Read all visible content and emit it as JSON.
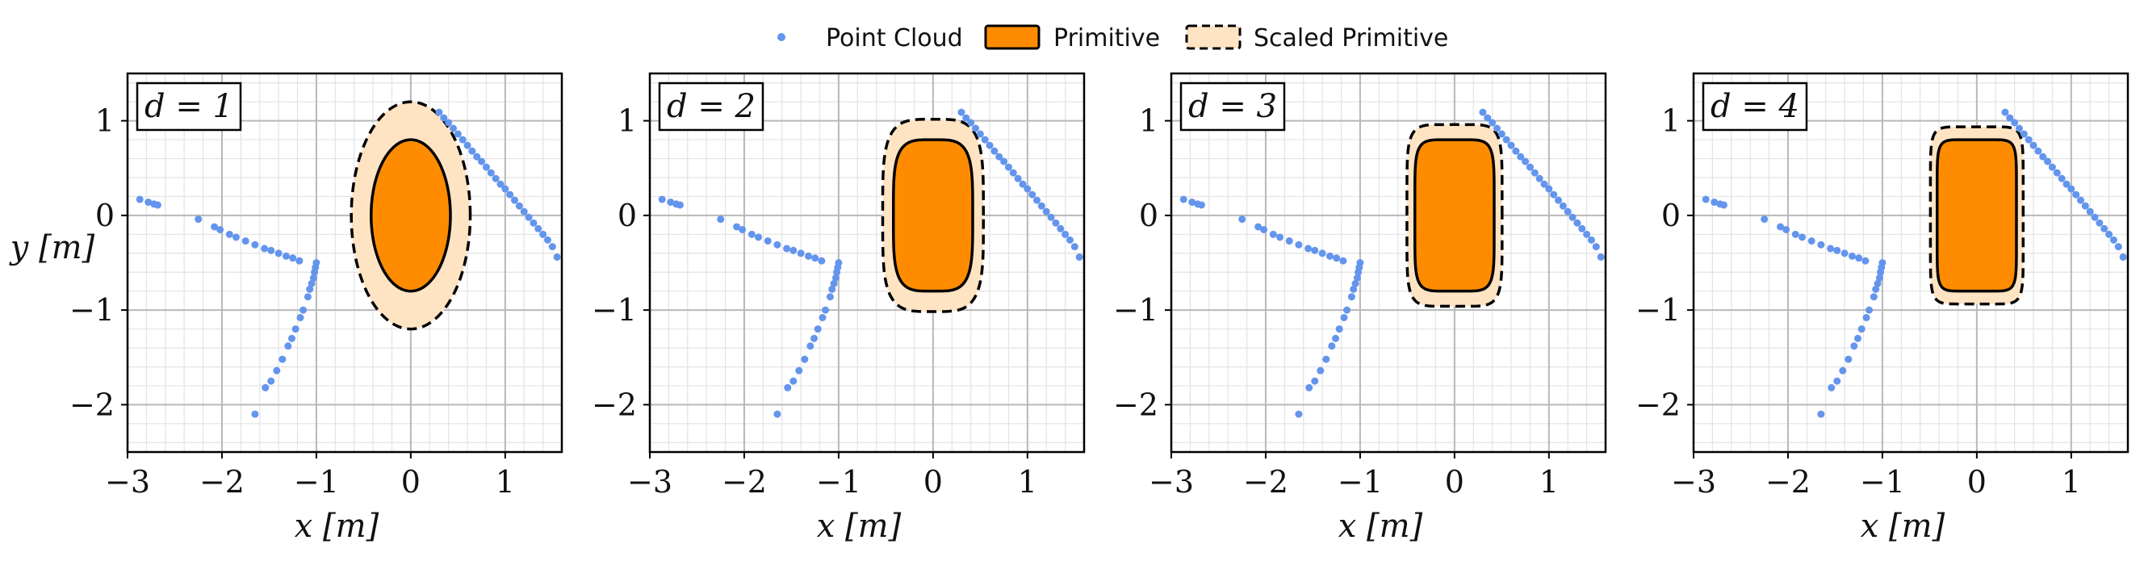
{
  "legend": {
    "point_cloud": "Point Cloud",
    "primitive": "Primitive",
    "scaled_primitive": "Scaled Primitive"
  },
  "colors": {
    "point": "#6495ed",
    "primitive_fill": "#ff8c00",
    "scaled_fill": "#ffe4c4",
    "minor_grid": "#e3e3e3",
    "major_grid": "#b8b8b8"
  },
  "chart_data": {
    "type": "scatter",
    "xlabel": "x [m]",
    "ylabel": "y [m]",
    "xlim": [
      -3,
      1.6
    ],
    "ylim": [
      -2.5,
      1.5
    ],
    "xticks": [
      -3,
      -2,
      -1,
      0,
      1
    ],
    "yticks": [
      -2,
      -1,
      0,
      1
    ],
    "grid": true,
    "legend_position": "top-center",
    "point_cloud": [
      [
        -2.87,
        0.17
      ],
      [
        -2.78,
        0.14
      ],
      [
        -2.72,
        0.12
      ],
      [
        -2.68,
        0.11
      ],
      [
        -2.25,
        -0.04
      ],
      [
        -2.08,
        -0.12
      ],
      [
        -2.02,
        -0.15
      ],
      [
        -1.92,
        -0.2
      ],
      [
        -1.85,
        -0.23
      ],
      [
        -1.75,
        -0.27
      ],
      [
        -1.65,
        -0.31
      ],
      [
        -1.55,
        -0.35
      ],
      [
        -1.48,
        -0.37
      ],
      [
        -1.4,
        -0.4
      ],
      [
        -1.32,
        -0.43
      ],
      [
        -1.25,
        -0.45
      ],
      [
        -1.18,
        -0.48
      ],
      [
        -1.0,
        -0.5
      ],
      [
        -1.01,
        -0.55
      ],
      [
        -1.02,
        -0.6
      ],
      [
        -1.03,
        -0.66
      ],
      [
        -1.05,
        -0.72
      ],
      [
        -1.07,
        -0.78
      ],
      [
        -1.09,
        -0.86
      ],
      [
        -1.14,
        -1.0
      ],
      [
        -1.17,
        -1.08
      ],
      [
        -1.22,
        -1.2
      ],
      [
        -1.26,
        -1.3
      ],
      [
        -1.3,
        -1.38
      ],
      [
        -1.36,
        -1.52
      ],
      [
        -1.42,
        -1.64
      ],
      [
        -1.48,
        -1.75
      ],
      [
        -1.54,
        -1.82
      ],
      [
        -1.65,
        -2.1
      ],
      [
        0.3,
        1.09
      ],
      [
        0.35,
        1.03
      ],
      [
        0.4,
        0.98
      ],
      [
        0.45,
        0.92
      ],
      [
        0.5,
        0.86
      ],
      [
        0.55,
        0.8
      ],
      [
        0.6,
        0.74
      ],
      [
        0.65,
        0.68
      ],
      [
        0.7,
        0.62
      ],
      [
        0.75,
        0.57
      ],
      [
        0.8,
        0.51
      ],
      [
        0.85,
        0.45
      ],
      [
        0.9,
        0.39
      ],
      [
        0.95,
        0.33
      ],
      [
        1.0,
        0.28
      ],
      [
        1.05,
        0.22
      ],
      [
        1.1,
        0.16
      ],
      [
        1.15,
        0.1
      ],
      [
        1.2,
        0.04
      ],
      [
        1.25,
        -0.02
      ],
      [
        1.3,
        -0.08
      ],
      [
        1.35,
        -0.14
      ],
      [
        1.4,
        -0.2
      ],
      [
        1.45,
        -0.26
      ],
      [
        1.5,
        -0.33
      ],
      [
        1.55,
        -0.44
      ]
    ],
    "panels": [
      {
        "label": "d = 1",
        "d": 1,
        "primitive": {
          "center": [
            0,
            0
          ],
          "half_extents": [
            0.42,
            0.8
          ]
        },
        "scale": 1.5
      },
      {
        "label": "d = 2",
        "d": 2,
        "primitive": {
          "center": [
            0,
            0
          ],
          "half_extents": [
            0.42,
            0.8
          ]
        },
        "scale": 1.27
      },
      {
        "label": "d = 3",
        "d": 3,
        "primitive": {
          "center": [
            0,
            0
          ],
          "half_extents": [
            0.42,
            0.8
          ]
        },
        "scale": 1.2
      },
      {
        "label": "d = 4",
        "d": 4,
        "primitive": {
          "center": [
            0,
            0
          ],
          "half_extents": [
            0.42,
            0.8
          ]
        },
        "scale": 1.17
      }
    ]
  }
}
